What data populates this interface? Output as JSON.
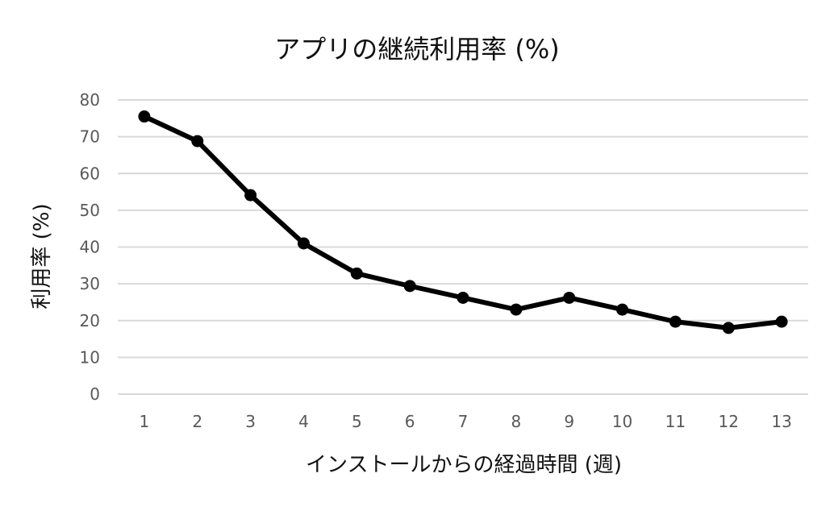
{
  "chart_data": {
    "type": "line",
    "title": "アプリの継続利用率 (%)",
    "xlabel": "インストールからの経過時間 (週)",
    "ylabel": "利用率 (%)",
    "categories": [
      "1",
      "2",
      "3",
      "4",
      "5",
      "6",
      "7",
      "8",
      "9",
      "10",
      "11",
      "12",
      "13"
    ],
    "series": [
      {
        "values": [
          75.5,
          68.8,
          54.1,
          41.0,
          32.8,
          29.4,
          26.2,
          23.0,
          26.2,
          23.0,
          19.7,
          18.0,
          19.7
        ]
      }
    ],
    "ylim": [
      0,
      80
    ],
    "yticks": [
      "0",
      "10",
      "20",
      "30",
      "40",
      "50",
      "60",
      "70",
      "80"
    ],
    "grid": true,
    "legend": "none",
    "colors": {
      "line": "#000000",
      "grid": "#d9d9d9",
      "tick_text": "#595959"
    }
  }
}
